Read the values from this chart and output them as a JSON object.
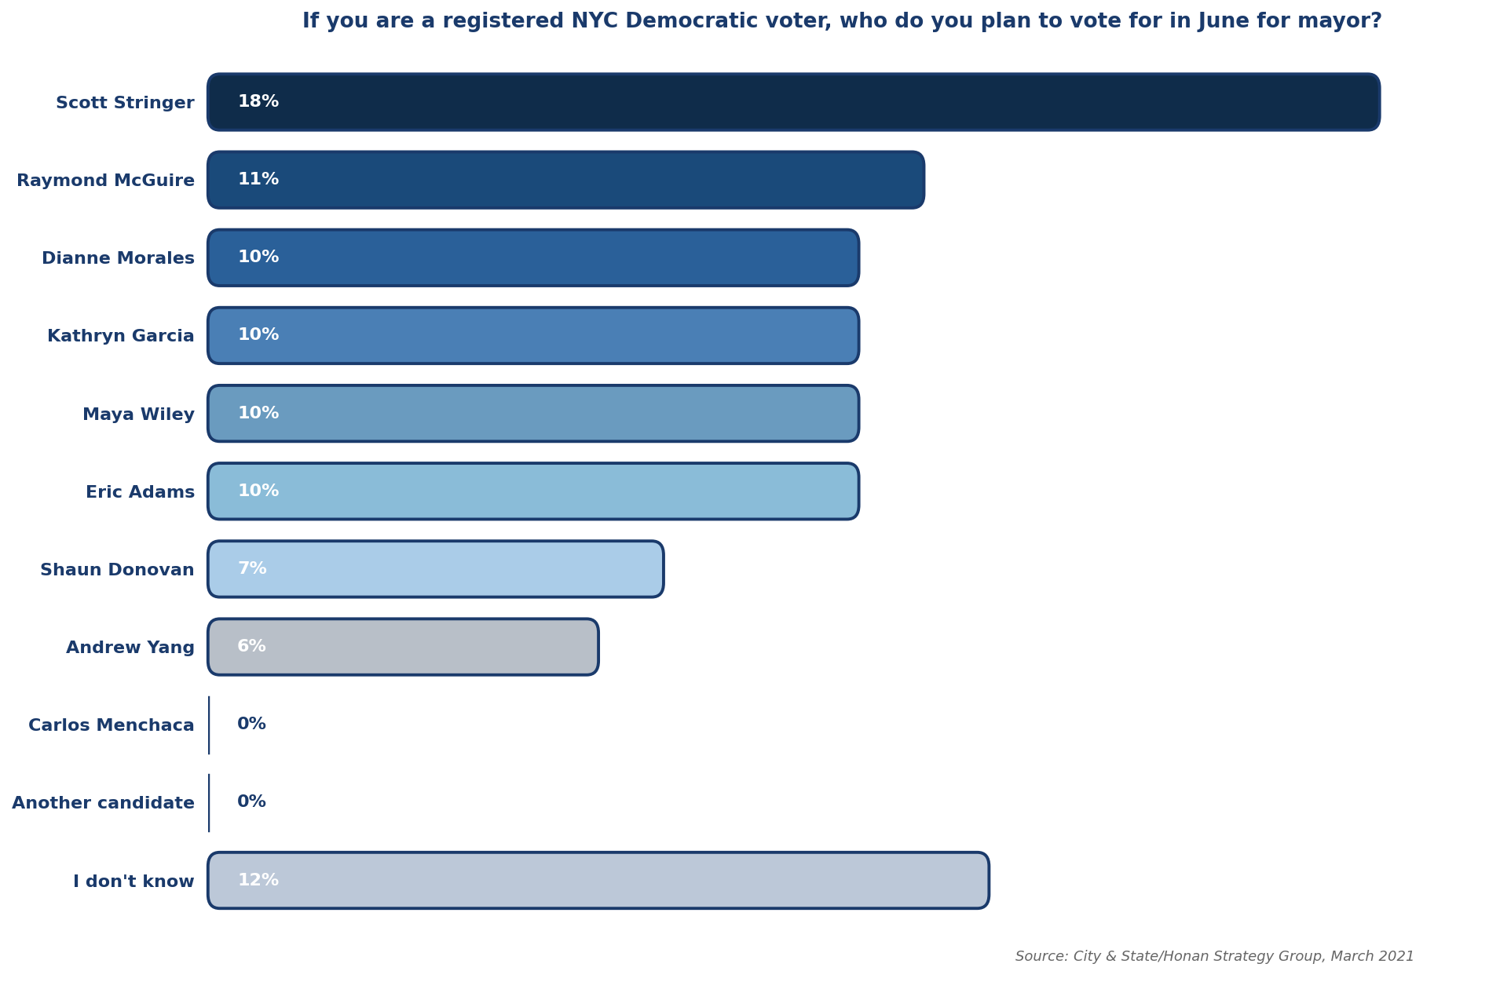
{
  "title": "If you are a registered NYC Democratic voter, who do you plan to vote for in June for mayor?",
  "source": "Source: City & State/Honan Strategy Group, March 2021",
  "categories": [
    "Scott Stringer",
    "Raymond McGuire",
    "Dianne Morales",
    "Kathryn Garcia",
    "Maya Wiley",
    "Eric Adams",
    "Shaun Donovan",
    "Andrew Yang",
    "Carlos Menchaca",
    "Another candidate",
    "I don't know"
  ],
  "values": [
    18,
    11,
    10,
    10,
    10,
    10,
    7,
    6,
    0,
    0,
    12
  ],
  "bar_colors": [
    "#0f2c4a",
    "#1a4a7a",
    "#2a6099",
    "#4a7fb5",
    "#6a9bbf",
    "#8abcd8",
    "#aacce8",
    "#b8bfc8",
    "#ffffff",
    "#ffffff",
    "#bcc8d8"
  ],
  "bar_edge_color": "#1a3a6b",
  "text_color_white": "#ffffff",
  "text_color_dark": "#1a3a6b",
  "title_color": "#1a3a6b",
  "label_color": "#1a3a6b",
  "source_color": "#666666",
  "xlim": [
    0,
    19.5
  ],
  "title_fontsize": 19,
  "label_fontsize": 16,
  "value_fontsize": 16,
  "source_fontsize": 13,
  "background_color": "#ffffff"
}
